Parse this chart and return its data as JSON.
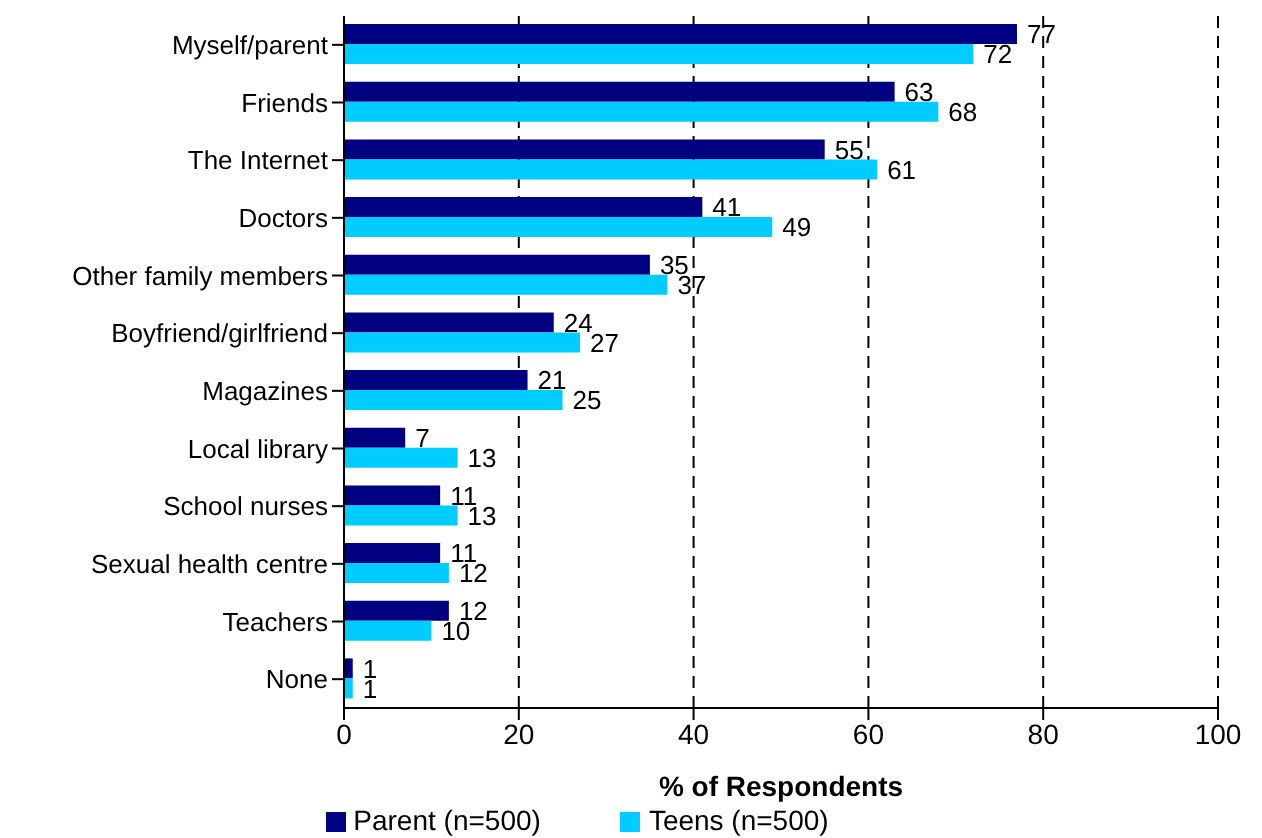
{
  "chart_data": {
    "type": "bar",
    "orientation": "horizontal",
    "xlabel": "% of Respondents",
    "categories": [
      "Myself/parent",
      "Friends",
      "The Internet",
      "Doctors",
      "Other family members",
      "Boyfriend/girlfriend",
      "Magazines",
      "Local library",
      "School nurses",
      "Sexual health centre",
      "Teachers",
      "None"
    ],
    "series": [
      {
        "name": "Parent (n=500)",
        "color": "#000080",
        "values": [
          77,
          63,
          55,
          41,
          35,
          24,
          21,
          7,
          11,
          11,
          12,
          1
        ]
      },
      {
        "name": "Teens (n=500)",
        "color": "#00ccff",
        "values": [
          72,
          68,
          61,
          49,
          37,
          27,
          25,
          13,
          13,
          12,
          10,
          1
        ]
      }
    ],
    "xlim": [
      0,
      100
    ],
    "xticks": [
      0,
      20,
      40,
      60,
      80,
      100
    ],
    "grid": "x",
    "legend": "bottom",
    "data_labels": true
  }
}
